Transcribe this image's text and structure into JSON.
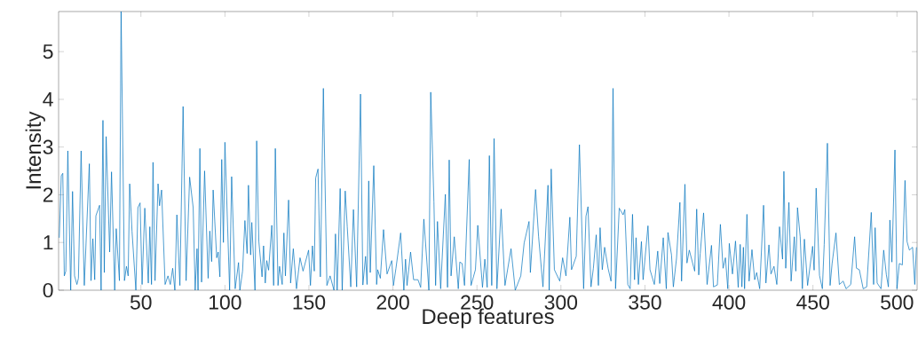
{
  "chart_data": {
    "type": "line",
    "xlabel": "Deep features",
    "ylabel": "Intensity",
    "color": "#0072bd",
    "xlim": [
      1,
      512
    ],
    "ylim": [
      0,
      5.84
    ],
    "xticks": [
      50,
      100,
      150,
      200,
      250,
      300,
      350,
      400,
      450,
      500
    ],
    "yticks": [
      0,
      1,
      2,
      3,
      4,
      5
    ],
    "x": [
      1.4,
      2.6,
      3.5,
      4.4,
      5.3,
      6.5,
      8.2,
      9.3,
      10.5,
      11.9,
      12.8,
      14.4,
      16.3,
      19.3,
      20.3,
      21.4,
      22.5,
      23.2,
      25.4,
      26.3,
      27.4,
      28.2,
      29.3,
      31.4,
      32.5,
      34.4,
      35.3,
      37.2,
      38.2,
      40.2,
      41.4,
      42.4,
      43.3,
      44.7,
      47.0,
      48.2,
      49.5,
      50.7,
      52.3,
      54.4,
      55.3,
      56.3,
      57.2,
      58.4,
      60.2,
      61.1,
      62.3,
      64.4,
      66.1,
      67.5,
      68.9,
      70.2,
      71.4,
      73.2,
      75.1,
      76.9,
      79.0,
      81.1,
      82.3,
      83.4,
      84.0,
      85.1,
      86.1,
      87.9,
      90.0,
      91.0,
      92.1,
      93.0,
      95.1,
      96.0,
      97.0,
      98.1,
      99.1,
      100.0,
      102.8,
      104.0,
      106.1,
      108.1,
      108.9,
      110.5,
      111.9,
      113.2,
      114.0,
      115.3,
      116.0,
      117.9,
      118.9,
      120.2,
      122.1,
      123.0,
      124.0,
      124.9,
      126.0,
      127.9,
      129.0,
      130.0,
      131.6,
      132.5,
      134.1,
      135.1,
      136.0,
      137.9,
      139.1,
      140.7,
      142.6,
      144.7,
      146.5,
      149.8,
      150.9,
      152.1,
      153.2,
      154.0,
      155.4,
      156.8,
      158.6,
      160.7,
      162.6,
      164.9,
      165.8,
      166.8,
      168.6,
      169.8,
      171.6,
      172.8,
      174.9,
      176.5,
      178.4,
      180.7,
      182.1,
      183.7,
      184.6,
      185.6,
      186.5,
      188.6,
      190.3,
      190.9,
      192.5,
      194.4,
      196.5,
      199.3,
      200.3,
      201.8,
      204.6,
      206.5,
      207.5,
      208.4,
      210.5,
      212.3,
      214.9,
      216.5,
      218.4,
      221.4,
      222.5,
      224.4,
      225.4,
      226.5,
      228.4,
      231.2,
      232.5,
      233.5,
      234.6,
      236.5,
      238.9,
      239.8,
      241.2,
      242.6,
      245.4,
      246.5,
      249.1,
      250.5,
      253.3,
      254.7,
      256.1,
      257.4,
      258.8,
      260.2,
      261.9,
      264.4,
      266.7,
      270.3,
      272.8,
      276.1,
      278.1,
      281.0,
      281.8,
      284.9,
      286.7,
      289.3,
      292.3,
      293.0,
      294.2,
      296.1,
      299.3,
      301.0,
      303.0,
      305.3,
      306.3,
      309.1,
      311.0,
      313.5,
      314.9,
      316.1,
      317.9,
      319.3,
      321.0,
      322.3,
      323.3,
      324.6,
      326.0,
      328.1,
      329.8,
      331.0,
      332.5,
      334.7,
      337.0,
      338.0,
      339.8,
      341.2,
      342.6,
      343.8,
      344.7,
      346.1,
      347.9,
      348.9,
      351.8,
      353.0,
      355.6,
      357.6,
      358.8,
      360.9,
      362.7,
      363.7,
      365.8,
      366.9,
      368.8,
      370.8,
      371.8,
      373.8,
      375.0,
      376.4,
      379.6,
      380.8,
      382.0,
      382.9,
      384.9,
      387.0,
      389.6,
      390.8,
      393.1,
      394.9,
      396.5,
      397.9,
      399.3,
      400.2,
      402.1,
      403.9,
      405.5,
      406.7,
      407.7,
      408.6,
      409.3,
      410.7,
      412.0,
      413.7,
      415.3,
      416.5,
      418.3,
      420.6,
      422.0,
      423.8,
      425.0,
      426.8,
      428.5,
      430.1,
      431.9,
      432.7,
      433.8,
      435.7,
      437.0,
      438.9,
      439.8,
      440.8,
      442.4,
      443.7,
      444.9,
      446.8,
      449.8,
      450.7,
      451.9,
      453.9,
      455.6,
      456.7,
      458.6,
      460.2,
      461.4,
      463.7,
      465.7,
      468.0,
      469.7,
      472.5,
      474.8,
      475.9,
      477.6,
      479.9,
      482.0,
      484.7,
      486.1,
      487.0,
      488.2,
      490.5,
      492.1,
      493.7,
      494.9,
      495.8,
      497.0,
      498.8,
      500.0,
      501.4,
      503.2,
      504.8,
      506.0,
      507.4,
      509.3,
      510.6,
      511.6
    ],
    "values": [
      1.1,
      2.4,
      2.45,
      0.3,
      0.4,
      2.92,
      0,
      2.07,
      0.3,
      0.12,
      0.25,
      2.92,
      0.1,
      2.65,
      0.2,
      1.08,
      0.22,
      1.56,
      1.78,
      0,
      3.56,
      0.37,
      3.22,
      0.8,
      2.48,
      0,
      1.29,
      0.2,
      5.84,
      0.2,
      0.5,
      0.3,
      2.23,
      1.24,
      0,
      1.73,
      1.83,
      0.12,
      1.72,
      0.15,
      1.33,
      0.12,
      2.68,
      0.2,
      2.23,
      1.77,
      2.1,
      0.12,
      0.3,
      0.12,
      0.46,
      0,
      1.58,
      0.1,
      3.85,
      0.2,
      2.37,
      1.73,
      0,
      0.87,
      0,
      2.97,
      0.17,
      2.5,
      0.25,
      1.24,
      0.6,
      2.1,
      0.68,
      0.8,
      0.28,
      2.74,
      1.0,
      3.1,
      0,
      2.38,
      0.03,
      0.58,
      0,
      0.4,
      1.46,
      0.77,
      2.2,
      0.74,
      1.42,
      0,
      3.13,
      1.02,
      0.28,
      0.93,
      0.15,
      0.62,
      0.42,
      1.36,
      0.1,
      2.97,
      0.1,
      0.5,
      0.12,
      1.2,
      0.3,
      1.89,
      0.15,
      0.87,
      0.03,
      0.68,
      0.4,
      0.84,
      0.1,
      0.93,
      0.4,
      2.35,
      2.54,
      0.28,
      4.23,
      0.1,
      0.3,
      0,
      1.18,
      0,
      2.13,
      0,
      2.08,
      1.33,
      0.07,
      1.69,
      0.07,
      4.11,
      0.11,
      0.71,
      0.12,
      2.29,
      0.37,
      2.61,
      0.12,
      0.43,
      0.25,
      1.27,
      0.34,
      0.62,
      0.1,
      0.46,
      1.2,
      0,
      0.65,
      0.1,
      0.8,
      0.22,
      0.22,
      0.06,
      1.49,
      0,
      4.15,
      1.85,
      0.1,
      1.44,
      0.03,
      2.01,
      0.06,
      2.73,
      0.3,
      1.12,
      0.03,
      0.59,
      0.56,
      0.1,
      2.74,
      0.1,
      0.43,
      1.36,
      0.06,
      0.65,
      0.06,
      2.82,
      0.1,
      3.18,
      0.03,
      1.7,
      0.1,
      0.87,
      0,
      0.3,
      0.99,
      1.44,
      0.37,
      2.11,
      1.12,
      0.07,
      2.2,
      0,
      2.54,
      0.43,
      0.19,
      0.68,
      0.3,
      1.53,
      0.43,
      0.71,
      3.05,
      0.03,
      1.55,
      1.75,
      0.07,
      0.46,
      1.16,
      0.1,
      1.31,
      0.43,
      0.9,
      0.45,
      0.19,
      4.23,
      0.03,
      1.72,
      1.58,
      1.69,
      0.12,
      0.03,
      1.59,
      0.22,
      1.1,
      0.12,
      1.02,
      0.22,
      1.35,
      0.43,
      0.12,
      0.82,
      0.14,
      1.1,
      0.03,
      1.21,
      0.74,
      0.07,
      0.67,
      1.84,
      0.19,
      2.22,
      0.57,
      0.84,
      0.4,
      1.7,
      0.32,
      0.77,
      1.62,
      0.12,
      0.94,
      0.07,
      0.11,
      1.38,
      0.46,
      0.68,
      0.03,
      0.98,
      0.34,
      1.03,
      0.06,
      0.96,
      0.07,
      0.9,
      0.03,
      1.59,
      0.19,
      0.85,
      0.22,
      0.37,
      0.03,
      1.78,
      0.15,
      0.95,
      0.34,
      0.5,
      0.12,
      1.33,
      0.65,
      2.49,
      0.46,
      1.84,
      0.19,
      1.12,
      0.4,
      1.73,
      1.12,
      0.03,
      1.07,
      0.1,
      0.92,
      0.42,
      2.14,
      0.31,
      0.03,
      0.96,
      3.08,
      0.1,
      0.56,
      1.2,
      0.12,
      0.19,
      0.03,
      0.12,
      1.12,
      0.46,
      0.43,
      0.03,
      0.07,
      1.63,
      0.12,
      1.31,
      0.15,
      0.03,
      0.84,
      0.32,
      0.07,
      1.47,
      0.59,
      2.94,
      0.03,
      0.56,
      0.53,
      2.3,
      1.02,
      0.84,
      0.9,
      0.12,
      0.9
    ]
  }
}
